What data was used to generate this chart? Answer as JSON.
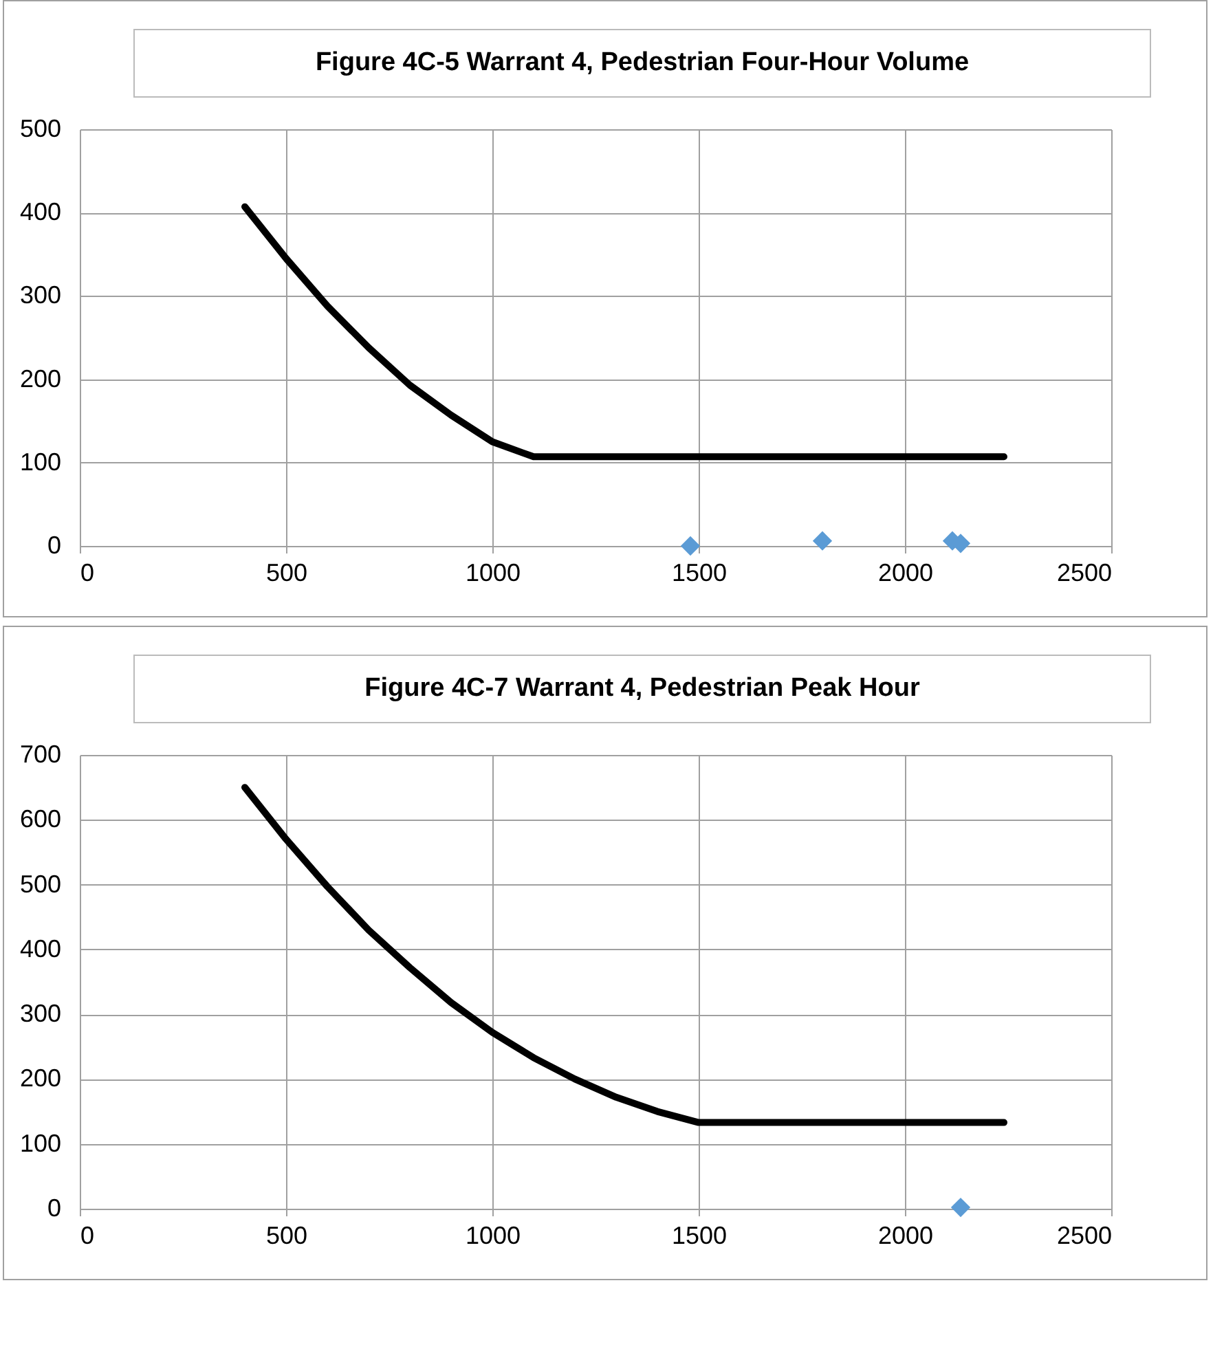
{
  "chart_data": [
    {
      "type": "line",
      "title": "Figure 4C-5 Warrant 4, Pedestrian Four-Hour Volume",
      "xlim": [
        0,
        2500
      ],
      "xticks": [
        0,
        500,
        1000,
        1500,
        2000,
        2500
      ],
      "ylim": [
        0,
        500
      ],
      "yticks": [
        0,
        100,
        200,
        300,
        400,
        500
      ],
      "grid": true,
      "series": [
        {
          "color": "#000000",
          "marker": "none",
          "x": [
            400,
            500,
            600,
            700,
            800,
            900,
            1000,
            1100,
            2240
          ],
          "values": [
            407,
            345,
            288,
            238,
            193,
            157,
            125,
            107,
            107
          ]
        },
        {
          "type": "scatter",
          "color": "#5b9bd5",
          "marker": "diamond",
          "x": [
            1480,
            1800,
            2115,
            2135
          ],
          "values": [
            0,
            6,
            6,
            3
          ]
        }
      ]
    },
    {
      "type": "line",
      "title": "Figure 4C-7 Warrant 4, Pedestrian Peak Hour",
      "xlim": [
        0,
        2500
      ],
      "xticks": [
        0,
        500,
        1000,
        1500,
        2000,
        2500
      ],
      "ylim": [
        0,
        700
      ],
      "yticks": [
        0,
        100,
        200,
        300,
        400,
        500,
        600,
        700
      ],
      "grid": true,
      "series": [
        {
          "color": "#000000",
          "marker": "none",
          "x": [
            400,
            500,
            600,
            700,
            800,
            900,
            1000,
            1100,
            1200,
            1300,
            1400,
            1500,
            2240
          ],
          "values": [
            650,
            570,
            497,
            430,
            372,
            318,
            272,
            233,
            200,
            172,
            150,
            133,
            133
          ]
        },
        {
          "type": "scatter",
          "color": "#5b9bd5",
          "marker": "diamond",
          "x": [
            2135
          ],
          "values": [
            2
          ]
        }
      ]
    }
  ]
}
